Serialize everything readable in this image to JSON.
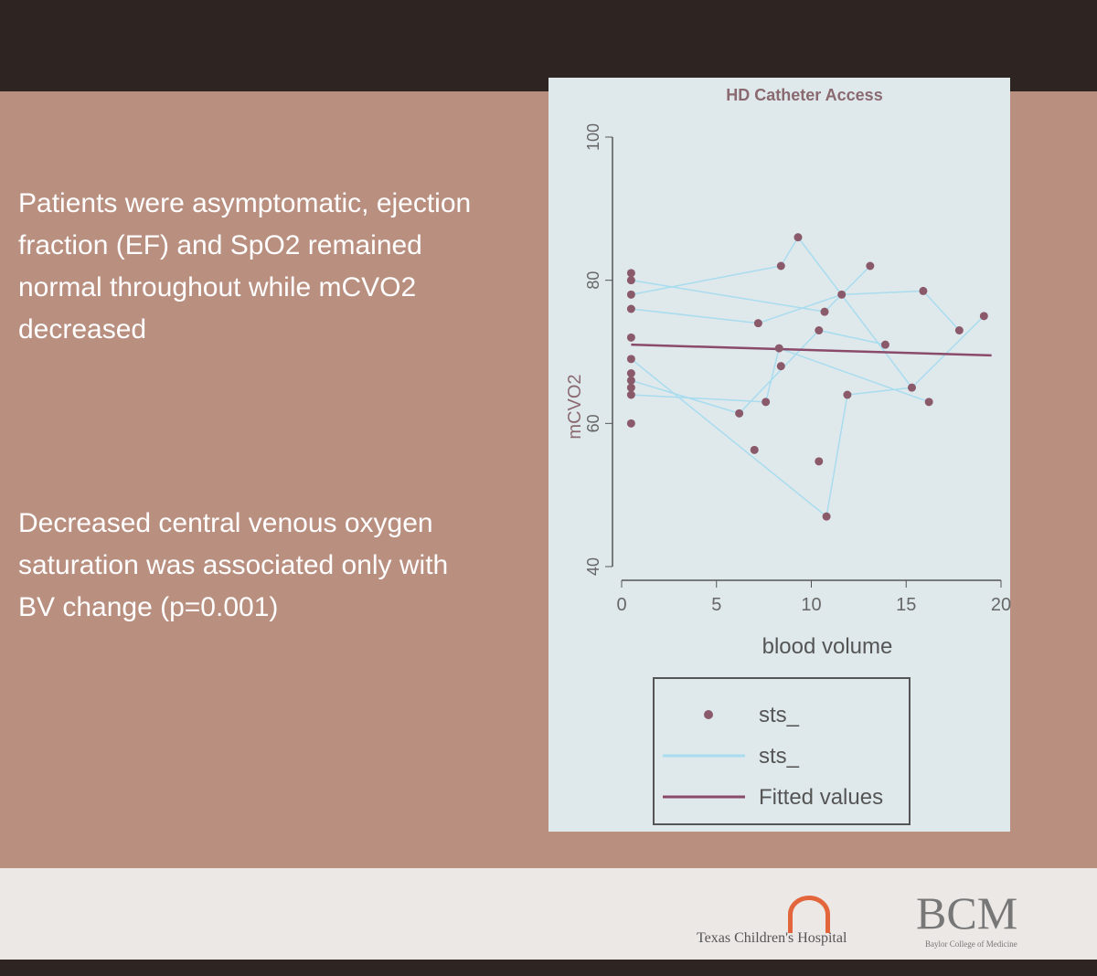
{
  "slide": {
    "paragraphs": [
      "Patients were asymptomatic, ejection fraction (EF) and SpO2 remained normal throughout while mCVO2 decreased",
      "Decreased central venous oxygen saturation was associated only with BV change (p=0.001)"
    ],
    "footer": {
      "hospital": "Texas Children's Hospital",
      "bcm": "BCM",
      "bcm_sub": "Baylor College of Medicine"
    }
  },
  "chart_data": {
    "type": "scatter",
    "title": "HD Catheter Access",
    "x_label": "blood volume",
    "y_label": "mCVO2",
    "xlim": [
      0,
      20
    ],
    "xticks": [
      0,
      5,
      10,
      15,
      20
    ],
    "ylim": [
      40,
      100
    ],
    "yticks": [
      40,
      60,
      80,
      100
    ],
    "series": [
      {
        "name": "sts_",
        "kind": "points",
        "color": "#8a5a6a",
        "x": [
          0.5,
          0.5,
          0.5,
          0.5,
          0.5,
          0.5,
          0.5,
          0.5,
          0.5,
          0.5,
          0.5,
          6.2,
          7,
          7.2,
          7.6,
          8.3,
          8.4,
          8.4,
          9.3,
          10.4,
          10.7,
          11.6,
          10.4,
          10.8,
          11.9,
          13.1,
          13.9,
          15.3,
          15.9,
          16.2,
          17.8,
          19.1
        ],
        "values": [
          81,
          80,
          78,
          76,
          72,
          69,
          67,
          66,
          65,
          64,
          60,
          61.4,
          56.3,
          74,
          63,
          70.5,
          68,
          82,
          86,
          73,
          75.6,
          78,
          54.7,
          47,
          64,
          82,
          71,
          65,
          78.5,
          63,
          73,
          75
        ]
      },
      {
        "name": "sts_",
        "kind": "line",
        "color": "#a8dcee",
        "x": [
          0.5,
          10.7,
          13.1,
          null,
          0.5,
          8.4,
          9.3,
          15.3,
          19.1,
          null,
          0.5,
          7.2,
          11.6,
          15.9,
          17.8,
          null,
          0.5,
          6.2,
          10.4,
          13.9,
          null,
          0.5,
          7.6,
          8.3,
          16.2,
          null,
          0.5,
          10.8,
          11.9,
          15.3
        ],
        "values": [
          80,
          75.6,
          82,
          null,
          78,
          82,
          86,
          65,
          75,
          null,
          76,
          74,
          78,
          78.5,
          73,
          null,
          66,
          61.4,
          73,
          71,
          null,
          64,
          63,
          70.5,
          63,
          null,
          69,
          47,
          64,
          65
        ]
      },
      {
        "name": "Fitted values",
        "kind": "line",
        "color": "#8a4a6a",
        "x": [
          0.5,
          19.5
        ],
        "values": [
          71,
          69.5
        ]
      }
    ]
  }
}
